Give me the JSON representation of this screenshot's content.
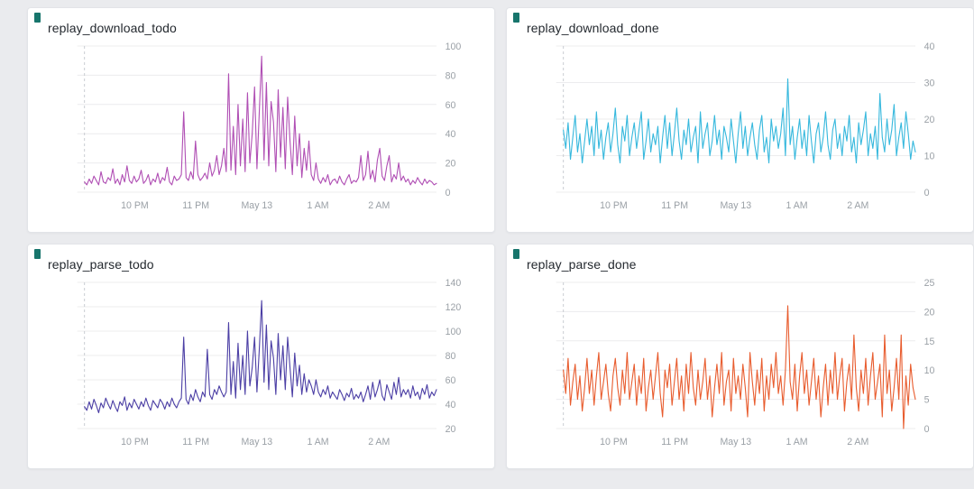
{
  "page": {
    "background": "#eaebee",
    "panel_icon_color": "#17756c"
  },
  "chart_data": [
    {
      "type": "line",
      "title": "replay_download_todo",
      "color": "#b04fb4",
      "xlabel": "",
      "ylabel": "",
      "ylim": [
        0,
        100
      ],
      "yticks": [
        0,
        20,
        40,
        60,
        80,
        100
      ],
      "xticks": [
        "10 PM",
        "11 PM",
        "May 13",
        "1 AM",
        "2 AM"
      ],
      "xtick_pos": [
        0.16,
        0.33,
        0.5,
        0.67,
        0.84
      ],
      "grid": true,
      "legend": "none",
      "values": [
        7,
        5,
        9,
        6,
        11,
        8,
        5,
        14,
        7,
        6,
        10,
        8,
        16,
        6,
        9,
        5,
        12,
        7,
        18,
        8,
        6,
        11,
        7,
        9,
        15,
        6,
        8,
        12,
        5,
        9,
        7,
        13,
        6,
        10,
        8,
        17,
        7,
        5,
        11,
        8,
        9,
        12,
        55,
        10,
        8,
        14,
        9,
        35,
        12,
        8,
        10,
        13,
        9,
        20,
        11,
        15,
        25,
        12,
        18,
        30,
        14,
        81,
        15,
        45,
        12,
        60,
        18,
        50,
        14,
        68,
        20,
        40,
        72,
        16,
        55,
        93,
        22,
        75,
        18,
        62,
        48,
        14,
        70,
        24,
        58,
        16,
        65,
        35,
        12,
        52,
        18,
        40,
        10,
        30,
        15,
        35,
        12,
        8,
        20,
        9,
        6,
        10,
        7,
        12,
        5,
        8,
        9,
        6,
        11,
        7,
        5,
        9,
        12,
        6,
        8,
        7,
        10,
        25,
        8,
        12,
        28,
        9,
        15,
        7,
        22,
        30,
        11,
        8,
        18,
        25,
        7,
        12,
        9,
        20,
        8,
        11,
        7,
        9,
        5,
        8,
        6,
        10,
        7,
        5,
        9,
        6,
        8,
        7,
        5,
        6
      ]
    },
    {
      "type": "line",
      "title": "replay_download_done",
      "color": "#36b8dd",
      "xlabel": "",
      "ylabel": "",
      "ylim": [
        0,
        40
      ],
      "yticks": [
        0,
        10,
        20,
        30,
        40
      ],
      "xticks": [
        "10 PM",
        "11 PM",
        "May 13",
        "1 AM",
        "2 AM"
      ],
      "xtick_pos": [
        0.16,
        0.33,
        0.5,
        0.67,
        0.84
      ],
      "grid": true,
      "legend": "none",
      "values": [
        17,
        12,
        19,
        9,
        15,
        21,
        11,
        16,
        8,
        14,
        20,
        13,
        18,
        10,
        22,
        12,
        17,
        9,
        15,
        19,
        11,
        16,
        23,
        13,
        8,
        18,
        14,
        21,
        10,
        15,
        19,
        12,
        17,
        22,
        9,
        14,
        20,
        11,
        16,
        13,
        18,
        8,
        15,
        21,
        12,
        19,
        10,
        16,
        23,
        14,
        9,
        17,
        13,
        20,
        11,
        15,
        18,
        8,
        22,
        12,
        16,
        19,
        10,
        14,
        21,
        13,
        17,
        9,
        18,
        15,
        11,
        20,
        14,
        8,
        16,
        22,
        12,
        18,
        10,
        15,
        19,
        13,
        9,
        17,
        21,
        11,
        15,
        8,
        20,
        14,
        18,
        12,
        16,
        23,
        10,
        31,
        13,
        18,
        9,
        15,
        20,
        12,
        17,
        10,
        21,
        14,
        8,
        16,
        19,
        11,
        15,
        22,
        13,
        9,
        17,
        20,
        12,
        16,
        10,
        18,
        14,
        21,
        11,
        15,
        8,
        19,
        13,
        17,
        22,
        10,
        16,
        12,
        18,
        9,
        27,
        15,
        11,
        20,
        13,
        17,
        24,
        10,
        15,
        19,
        12,
        22,
        16,
        9,
        14,
        11
      ]
    },
    {
      "type": "line",
      "title": "replay_parse_todo",
      "color": "#4c3fa5",
      "xlabel": "",
      "ylabel": "",
      "ylim": [
        20,
        140
      ],
      "yticks": [
        20,
        40,
        60,
        80,
        100,
        120,
        140
      ],
      "xticks": [
        "10 PM",
        "11 PM",
        "May 13",
        "1 AM",
        "2 AM"
      ],
      "xtick_pos": [
        0.16,
        0.33,
        0.5,
        0.67,
        0.84
      ],
      "grid": true,
      "legend": "none",
      "values": [
        38,
        35,
        42,
        36,
        44,
        39,
        33,
        41,
        37,
        45,
        40,
        36,
        43,
        38,
        34,
        42,
        39,
        46,
        35,
        41,
        37,
        44,
        40,
        36,
        42,
        38,
        45,
        39,
        35,
        43,
        40,
        37,
        44,
        41,
        36,
        42,
        38,
        45,
        40,
        37,
        42,
        45,
        95,
        44,
        40,
        48,
        43,
        52,
        46,
        42,
        50,
        46,
        85,
        48,
        44,
        52,
        48,
        55,
        50,
        46,
        50,
        107,
        48,
        75,
        45,
        90,
        52,
        80,
        48,
        100,
        55,
        70,
        95,
        50,
        85,
        125,
        58,
        105,
        52,
        92,
        78,
        48,
        98,
        60,
        88,
        52,
        95,
        70,
        46,
        82,
        55,
        72,
        48,
        65,
        50,
        60,
        55,
        48,
        60,
        50,
        46,
        52,
        48,
        55,
        45,
        50,
        47,
        44,
        52,
        48,
        43,
        49,
        46,
        53,
        44,
        48,
        45,
        50,
        42,
        48,
        55,
        44,
        58,
        46,
        52,
        60,
        47,
        43,
        56,
        50,
        44,
        58,
        48,
        62,
        46,
        52,
        48,
        52,
        45,
        55,
        47,
        50,
        44,
        53,
        48,
        56,
        45,
        50,
        47,
        52
      ]
    },
    {
      "type": "line",
      "title": "replay_parse_done",
      "color": "#e85c2e",
      "xlabel": "",
      "ylabel": "",
      "ylim": [
        0,
        25
      ],
      "yticks": [
        0,
        5,
        10,
        15,
        20,
        25
      ],
      "xticks": [
        "10 PM",
        "11 PM",
        "May 13",
        "1 AM",
        "2 AM"
      ],
      "xtick_pos": [
        0.16,
        0.33,
        0.5,
        0.67,
        0.84
      ],
      "grid": true,
      "legend": "none",
      "values": [
        10,
        6,
        12,
        4,
        8,
        11,
        5,
        9,
        3,
        7,
        12,
        6,
        10,
        4,
        9,
        13,
        5,
        8,
        11,
        6,
        3,
        9,
        12,
        7,
        4,
        10,
        6,
        13,
        5,
        8,
        11,
        4,
        9,
        6,
        12,
        3,
        7,
        10,
        5,
        9,
        13,
        6,
        2,
        10,
        7,
        11,
        4,
        8,
        12,
        5,
        9,
        3,
        11,
        6,
        13,
        7,
        4,
        10,
        5,
        8,
        12,
        5,
        9,
        2,
        7,
        11,
        6,
        13,
        4,
        8,
        10,
        3,
        12,
        6,
        9,
        5,
        11,
        7,
        2,
        13,
        8,
        4,
        10,
        6,
        12,
        3,
        9,
        5,
        11,
        7,
        13,
        6,
        9,
        4,
        10,
        21,
        8,
        5,
        11,
        3,
        9,
        13,
        6,
        10,
        4,
        8,
        12,
        5,
        9,
        2,
        7,
        11,
        4,
        10,
        6,
        13,
        5,
        9,
        12,
        3,
        8,
        11,
        5,
        16,
        7,
        3,
        10,
        6,
        12,
        4,
        9,
        13,
        5,
        8,
        11,
        2,
        16,
        6,
        10,
        3,
        7,
        12,
        5,
        16,
        0,
        9,
        4,
        11,
        7,
        5
      ]
    }
  ]
}
